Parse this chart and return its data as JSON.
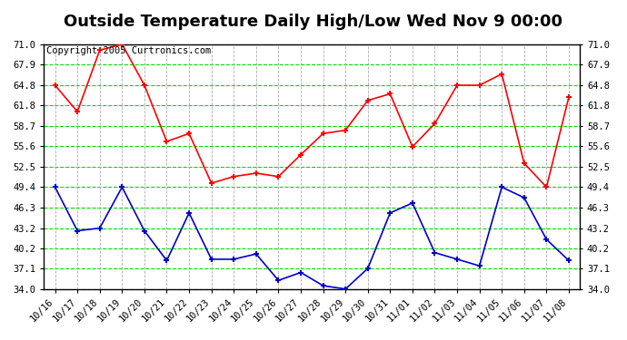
{
  "title": "Outside Temperature Daily High/Low Wed Nov 9 00:00",
  "copyright": "Copyright 2005 Curtronics.com",
  "x_labels": [
    "10/16",
    "10/17",
    "10/18",
    "10/19",
    "10/20",
    "10/21",
    "10/22",
    "10/23",
    "10/24",
    "10/25",
    "10/26",
    "10/27",
    "10/28",
    "10/29",
    "10/30",
    "10/31",
    "11/01",
    "11/02",
    "11/03",
    "11/04",
    "11/05",
    "11/06",
    "11/07",
    "11/08"
  ],
  "high_values": [
    64.8,
    60.8,
    70.1,
    71.0,
    64.8,
    56.3,
    57.5,
    50.0,
    51.0,
    51.5,
    51.0,
    54.3,
    57.5,
    58.0,
    62.5,
    63.5,
    55.5,
    59.0,
    64.8,
    64.8,
    66.5,
    53.0,
    49.4,
    63.0
  ],
  "low_values": [
    49.4,
    42.8,
    43.2,
    49.4,
    42.8,
    38.3,
    45.5,
    38.5,
    38.5,
    39.3,
    35.3,
    36.5,
    34.5,
    34.0,
    37.1,
    45.5,
    47.0,
    39.5,
    38.5,
    37.5,
    49.4,
    47.8,
    41.5,
    38.3
  ],
  "y_ticks": [
    34.0,
    37.1,
    40.2,
    43.2,
    46.3,
    49.4,
    52.5,
    55.6,
    58.7,
    61.8,
    64.8,
    67.9,
    71.0
  ],
  "y_min": 34.0,
  "y_max": 71.0,
  "high_color": "#ff0000",
  "low_color": "#0000cc",
  "bg_color": "#ffffff",
  "grid_h_color": "#00dd00",
  "grid_v_color": "#aaaaaa",
  "title_fontsize": 13,
  "copyright_fontsize": 7.5,
  "tick_fontsize": 7.5
}
